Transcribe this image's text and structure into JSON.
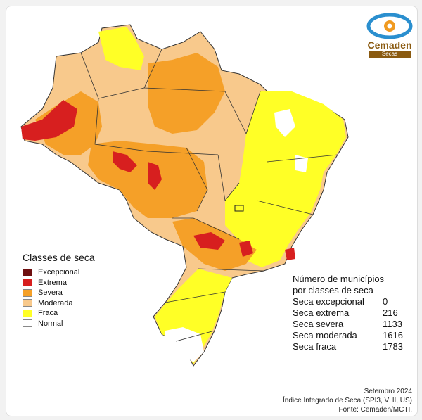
{
  "logo": {
    "name": "Cemaden",
    "band": "Secas"
  },
  "legend": {
    "title": "Classes de seca",
    "items": [
      {
        "label": "Excepcional",
        "color": "#6e0f10"
      },
      {
        "label": "Extrema",
        "color": "#d71f1f"
      },
      {
        "label": "Severa",
        "color": "#f5a028"
      },
      {
        "label": "Moderada",
        "color": "#f8c98c"
      },
      {
        "label": "Fraca",
        "color": "#ffff26"
      },
      {
        "label": "Normal",
        "color": "#ffffff"
      }
    ]
  },
  "stats": {
    "title_line1": "Número de municípios",
    "title_line2": "por classes de seca",
    "rows": [
      {
        "label": "Seca excepcional",
        "value": "0"
      },
      {
        "label": "Seca extrema",
        "value": "216"
      },
      {
        "label": "Seca severa",
        "value": "1133"
      },
      {
        "label": "Seca moderada",
        "value": "1616"
      },
      {
        "label": "Seca fraca",
        "value": "1783"
      }
    ]
  },
  "footer": {
    "date": "Setembro 2024",
    "index": "Índice Integrado de Seca (SPI3, VHI, US)",
    "source": "Fonte: Cemaden/MCTI."
  }
}
